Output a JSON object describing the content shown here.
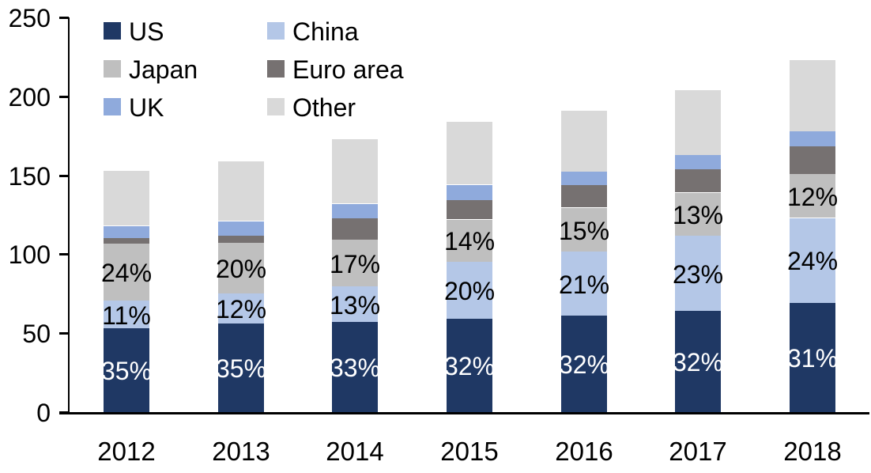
{
  "chart_data": {
    "type": "bar",
    "variant": "stacked-vertical",
    "title": "",
    "xlabel": "",
    "ylabel": "",
    "categories": [
      "2012",
      "2013",
      "2014",
      "2015",
      "2016",
      "2017",
      "2018"
    ],
    "series": [
      {
        "name": "US",
        "color": "#1f3864",
        "values": [
          53,
          56,
          57,
          59,
          61,
          64,
          69
        ],
        "labels": [
          "35%",
          "35%",
          "33%",
          "32%",
          "32%",
          "32%",
          "31%"
        ],
        "label_color": "#ffffff"
      },
      {
        "name": "China",
        "color": "#b4c7e7",
        "values": [
          17.5,
          19,
          22.5,
          36,
          40.5,
          47.5,
          54
        ],
        "labels": [
          "11%",
          "12%",
          "13%",
          "20%",
          "21%",
          "23%",
          "24%"
        ],
        "label_color": "#000000"
      },
      {
        "name": "Japan",
        "color": "#bfbfbf",
        "values": [
          36,
          32,
          29.5,
          27,
          28,
          27.5,
          28
        ],
        "labels": [
          "24%",
          "20%",
          "17%",
          "14%",
          "15%",
          "13%",
          "12%"
        ],
        "label_color": "#000000"
      },
      {
        "name": "Euro area",
        "color": "#767171",
        "values": [
          4,
          5,
          14,
          12.5,
          14.5,
          15,
          17.5
        ],
        "labels": null,
        "label_color": null
      },
      {
        "name": "UK",
        "color": "#8faadc",
        "values": [
          7.5,
          9,
          9,
          9.5,
          8.5,
          9,
          9.5
        ],
        "labels": null,
        "label_color": null
      },
      {
        "name": "Other",
        "color": "#d9d9d9",
        "values": [
          35,
          38,
          41,
          40,
          38.5,
          41,
          45
        ],
        "labels": null,
        "label_color": null
      }
    ],
    "totals": [
      153,
      159,
      173,
      184,
      191,
      204,
      223
    ],
    "y_axis": {
      "min": 0,
      "max": 250,
      "tick_step": 50,
      "tick_labels": [
        "0",
        "50",
        "100",
        "150",
        "200",
        "250"
      ]
    },
    "grid": false,
    "legend": {
      "position": "top-left",
      "columns": 2,
      "items": [
        {
          "label": "US",
          "color": "#1f3864"
        },
        {
          "label": "China",
          "color": "#b4c7e7"
        },
        {
          "label": "Japan",
          "color": "#bfbfbf"
        },
        {
          "label": "Euro area",
          "color": "#767171"
        },
        {
          "label": "UK",
          "color": "#8faadc"
        },
        {
          "label": "Other",
          "color": "#d9d9d9"
        }
      ]
    },
    "colors": {
      "axis": "#000000",
      "background": "#ffffff",
      "text": "#000000"
    }
  }
}
